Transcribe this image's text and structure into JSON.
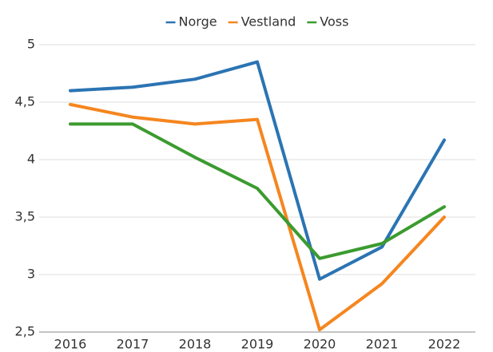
{
  "chart_data": {
    "type": "line",
    "categories": [
      "2016",
      "2017",
      "2018",
      "2019",
      "2020",
      "2021",
      "2022"
    ],
    "series": [
      {
        "name": "Norge",
        "color": "#2b74b3",
        "values": [
          4.6,
          4.63,
          4.7,
          4.85,
          2.96,
          3.24,
          4.17
        ]
      },
      {
        "name": "Vestland",
        "color": "#f5861f",
        "values": [
          4.48,
          4.37,
          4.31,
          4.35,
          2.52,
          2.92,
          3.5
        ]
      },
      {
        "name": "Voss",
        "color": "#3b9b2f",
        "values": [
          4.31,
          4.31,
          4.02,
          3.75,
          3.14,
          3.27,
          3.59
        ]
      }
    ],
    "ylim": [
      2.5,
      5
    ],
    "yticks": [
      {
        "value": 2.5,
        "label": "2,5"
      },
      3,
      {
        "value": 3.5,
        "label": "3,5"
      },
      4,
      {
        "value": 4.5,
        "label": "4,5"
      },
      5
    ],
    "grid": true,
    "legend": "top"
  }
}
